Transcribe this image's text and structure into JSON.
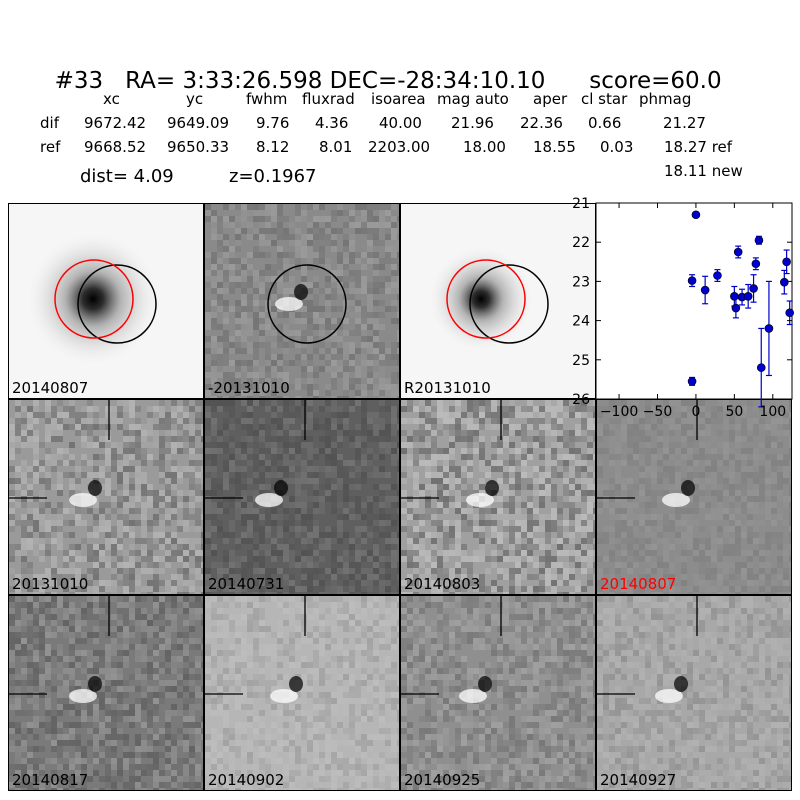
{
  "title": {
    "id": "#33",
    "ra_label": "RA= 3:33:26.598",
    "dec_label": "DEC=-28:34:10.10",
    "score_label": "score=60.0"
  },
  "table": {
    "headers": [
      "xc",
      "yc",
      "fwhm",
      "fluxrad",
      "isoarea",
      "mag auto",
      "aper",
      "cl star",
      "phmag"
    ],
    "rows": [
      {
        "label": "dif",
        "values": [
          "9672.42",
          "9649.09",
          "9.76",
          "4.36",
          "40.00",
          "21.96",
          "22.36",
          "0.66",
          "21.27"
        ]
      },
      {
        "label": "ref",
        "values": [
          "9668.52",
          "9650.33",
          "8.12",
          "8.01",
          "2203.00",
          "18.00",
          "18.55",
          "0.03",
          "18.27 ref"
        ]
      }
    ],
    "extra_value": "18.11 new"
  },
  "dist_label": "dist=  4.09",
  "z_label": "z=0.1967",
  "stamps": [
    {
      "label": "20140807",
      "kind": "galaxy",
      "bg": "#f6f6f6",
      "circles": true,
      "label_color": "#000000"
    },
    {
      "label": "-20131010",
      "kind": "diff",
      "bg": "#8a8a8a",
      "circles": true,
      "label_color": "#000000"
    },
    {
      "label": "R20131010",
      "kind": "galaxy2",
      "bg": "#f6f6f6",
      "circles": true,
      "label_color": "#000000"
    },
    {
      "label": "20131010",
      "kind": "noise",
      "bg": "#9a9a9a",
      "label_color": "#000000"
    },
    {
      "label": "20140731",
      "kind": "dark",
      "bg": "#5f5f5f",
      "label_color": "#000000"
    },
    {
      "label": "20140803",
      "kind": "noise2",
      "bg": "#a0a0a0",
      "label_color": "#000000"
    },
    {
      "label": "20140807",
      "kind": "smooth",
      "bg": "#8c8c8c",
      "label_color": "#ff0000"
    },
    {
      "label": "20140817",
      "kind": "mid",
      "bg": "#7a7a7a",
      "label_color": "#000000"
    },
    {
      "label": "20140902",
      "kind": "light",
      "bg": "#b6b6b6",
      "label_color": "#000000"
    },
    {
      "label": "20140925",
      "kind": "mid2",
      "bg": "#8f8f8f",
      "label_color": "#000000"
    },
    {
      "label": "20140927",
      "kind": "light2",
      "bg": "#a8a8a8",
      "label_color": "#000000"
    }
  ],
  "colors": {
    "point": "#0000cc",
    "circle_red": "#ff0000",
    "circle_black": "#000000"
  },
  "chart_data": {
    "type": "scatter",
    "xlim": [
      -130,
      125
    ],
    "ylim": [
      26,
      21
    ],
    "y_inverted": true,
    "x_ticks": [
      -100,
      -50,
      0,
      50,
      100
    ],
    "x_tick_labels": [
      "−100",
      "−50",
      "0",
      "50",
      "100"
    ],
    "y_ticks": [
      21,
      22,
      23,
      24,
      25,
      26
    ],
    "y_tick_labels": [
      "21",
      "22",
      "23",
      "24",
      "25",
      "26"
    ],
    "points": [
      {
        "x": -5,
        "y": 25.55,
        "err": 0.1
      },
      {
        "x": -5,
        "y": 22.98,
        "err": 0.15
      },
      {
        "x": 0,
        "y": 21.3,
        "err": 0.05
      },
      {
        "x": 12,
        "y": 23.22,
        "err": 0.35
      },
      {
        "x": 28,
        "y": 22.85,
        "err": 0.15
      },
      {
        "x": 50,
        "y": 23.38,
        "err": 0.25
      },
      {
        "x": 52,
        "y": 23.68,
        "err": 0.25
      },
      {
        "x": 55,
        "y": 22.25,
        "err": 0.15
      },
      {
        "x": 60,
        "y": 23.4,
        "err": 0.2
      },
      {
        "x": 68,
        "y": 23.38,
        "err": 0.3
      },
      {
        "x": 75,
        "y": 23.18,
        "err": 0.35
      },
      {
        "x": 78,
        "y": 22.55,
        "err": 0.15
      },
      {
        "x": 82,
        "y": 21.95,
        "err": 0.1
      },
      {
        "x": 85,
        "y": 25.2,
        "err": 1.0
      },
      {
        "x": 95,
        "y": 24.2,
        "err": 1.2
      },
      {
        "x": 115,
        "y": 23.02,
        "err": 0.3
      },
      {
        "x": 118,
        "y": 22.5,
        "err": 0.3
      },
      {
        "x": 122,
        "y": 23.8,
        "err": 0.3
      }
    ]
  }
}
